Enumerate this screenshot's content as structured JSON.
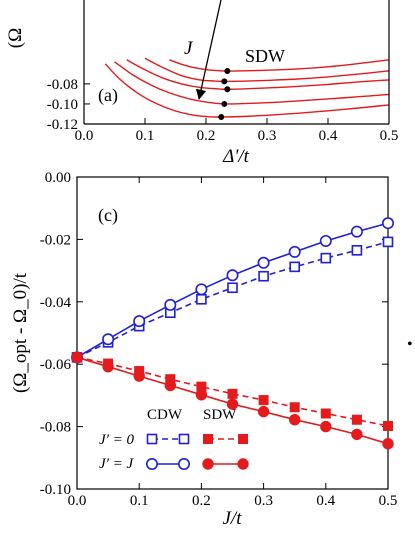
{
  "chart_data": [
    {
      "panel": "(a)",
      "type": "line",
      "title": "",
      "xlabel": "Δ'/t",
      "ylabel": "(Ω",
      "xlim": [
        0.0,
        0.5
      ],
      "ylim": [
        -0.12,
        -0.06
      ],
      "x_ticks": [
        0.0,
        0.1,
        0.2,
        0.3,
        0.4,
        0.5
      ],
      "x_tick_labels": [
        "0.0",
        "0.1",
        "0.2",
        "0.3",
        "0.4",
        "0.5"
      ],
      "y_ticks": [
        -0.12,
        -0.1,
        -0.08
      ],
      "y_tick_labels": [
        "-0.12",
        "-0.10",
        "-0.08"
      ],
      "curve_color": "#e41a1c",
      "marker_color": "#000000",
      "annotations": {
        "arrow_label": "J",
        "phase_label": "SDW"
      },
      "curves": [
        {
          "x": [
            0.14,
            0.16,
            0.18,
            0.2,
            0.22,
            0.235,
            0.26,
            0.3,
            0.35,
            0.4,
            0.45,
            0.5
          ],
          "y": [
            -0.056,
            -0.0605,
            -0.0638,
            -0.0658,
            -0.0669,
            -0.0672,
            -0.067,
            -0.0664,
            -0.0651,
            -0.063,
            -0.0598,
            -0.056
          ]
        },
        {
          "x": [
            0.1,
            0.13,
            0.16,
            0.19,
            0.215,
            0.23,
            0.26,
            0.3,
            0.35,
            0.4,
            0.45,
            0.5
          ],
          "y": [
            -0.0545,
            -0.064,
            -0.0718,
            -0.076,
            -0.0772,
            -0.0775,
            -0.0773,
            -0.0765,
            -0.0751,
            -0.073,
            -0.0702,
            -0.067
          ]
        },
        {
          "x": [
            0.07,
            0.1,
            0.13,
            0.16,
            0.19,
            0.22,
            0.235,
            0.26,
            0.3,
            0.35,
            0.4,
            0.45,
            0.5
          ],
          "y": [
            -0.056,
            -0.066,
            -0.0743,
            -0.08,
            -0.0835,
            -0.085,
            -0.0854,
            -0.085,
            -0.084,
            -0.0825,
            -0.0805,
            -0.078,
            -0.076
          ]
        },
        {
          "x": [
            0.05,
            0.08,
            0.11,
            0.14,
            0.17,
            0.2,
            0.23,
            0.26,
            0.3,
            0.35,
            0.4,
            0.45,
            0.5
          ],
          "y": [
            -0.058,
            -0.071,
            -0.0812,
            -0.089,
            -0.0945,
            -0.0982,
            -0.1,
            -0.0997,
            -0.0988,
            -0.097,
            -0.095,
            -0.0928,
            -0.0905
          ]
        },
        {
          "x": [
            0.035,
            0.06,
            0.09,
            0.12,
            0.15,
            0.18,
            0.205,
            0.225,
            0.26,
            0.3,
            0.35,
            0.4,
            0.45,
            0.5
          ],
          "y": [
            -0.06,
            -0.076,
            -0.09,
            -0.1,
            -0.107,
            -0.1112,
            -0.1128,
            -0.113,
            -0.1125,
            -0.1113,
            -0.1093,
            -0.1068,
            -0.104,
            -0.101
          ]
        }
      ],
      "minima": [
        {
          "x": 0.235,
          "y": -0.0672
        },
        {
          "x": 0.23,
          "y": -0.0775
        },
        {
          "x": 0.235,
          "y": -0.0854
        },
        {
          "x": 0.23,
          "y": -0.1
        },
        {
          "x": 0.225,
          "y": -0.113
        }
      ]
    },
    {
      "panel": "(c)",
      "type": "line",
      "title": "",
      "xlabel": "J/t",
      "ylabel": "(Ω_opt - Ω_0)/t",
      "xlim": [
        0.0,
        0.5
      ],
      "ylim": [
        -0.1,
        0.0
      ],
      "x_ticks": [
        0.0,
        0.1,
        0.2,
        0.3,
        0.4,
        0.5
      ],
      "x_tick_labels": [
        "0.0",
        "0.1",
        "0.2",
        "0.3",
        "0.4",
        "0.5"
      ],
      "y_ticks": [
        -0.1,
        -0.08,
        -0.06,
        -0.04,
        -0.02,
        0.0
      ],
      "y_tick_labels": [
        "-0.10",
        "-0.08",
        "-0.06",
        "-0.04",
        "-0.02",
        "0.00"
      ],
      "x": [
        0.0,
        0.05,
        0.1,
        0.15,
        0.2,
        0.25,
        0.3,
        0.35,
        0.4,
        0.45,
        0.5
      ],
      "series": [
        {
          "phase": "CDW",
          "case": "J' = 0",
          "color": "#1f1fd6",
          "line": "dashed",
          "marker": "open-square",
          "values": [
            -0.0578,
            -0.053,
            -0.0478,
            -0.0435,
            -0.0392,
            -0.0355,
            -0.0318,
            -0.0288,
            -0.026,
            -0.0235,
            -0.0208
          ]
        },
        {
          "phase": "SDW",
          "case": "J' = 0",
          "color": "#e41a1c",
          "line": "dashed",
          "marker": "filled-square",
          "values": [
            -0.0578,
            -0.0598,
            -0.0622,
            -0.0648,
            -0.0672,
            -0.0695,
            -0.0715,
            -0.0738,
            -0.0758,
            -0.0778,
            -0.0798
          ]
        },
        {
          "phase": "CDW",
          "case": "J' = J",
          "color": "#1f1fd6",
          "line": "solid",
          "marker": "open-circle",
          "values": [
            -0.0578,
            -0.052,
            -0.0462,
            -0.041,
            -0.036,
            -0.0315,
            -0.0275,
            -0.024,
            -0.0205,
            -0.0175,
            -0.0148
          ]
        },
        {
          "phase": "SDW",
          "case": "J' = J",
          "color": "#e41a1c",
          "line": "solid",
          "marker": "filled-circle",
          "values": [
            -0.0578,
            -0.0608,
            -0.0638,
            -0.0668,
            -0.0698,
            -0.0728,
            -0.0752,
            -0.0778,
            -0.08,
            -0.0825,
            -0.0855
          ]
        }
      ],
      "legend": {
        "headers": [
          "CDW",
          "SDW"
        ],
        "rows": [
          "J' = 0",
          "J' = J"
        ]
      }
    }
  ],
  "side_mark": "•"
}
